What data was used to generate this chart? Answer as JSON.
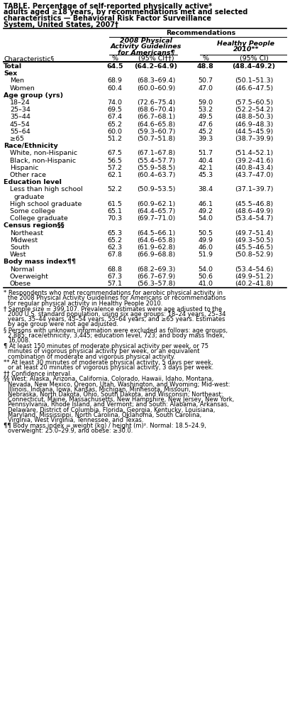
{
  "title_parts": [
    {
      "text": "TABLE. ",
      "bold": true
    },
    {
      "text": "Percentage of self-reported physically active",
      "bold": true
    },
    {
      "text": "*",
      "bold": true,
      "super": true
    },
    {
      "text": " adults aged ≥18 years, by recommendations met and selected characteristics — Behavioral Risk Factor Surveillance System, United States, 2007",
      "bold": true
    },
    {
      "text": "†",
      "bold": true,
      "super": true
    }
  ],
  "title_plain": "TABLE. Percentage of self-reported physically active* adults aged ≥18 years, by recommendations met and selected characteristics — Behavioral Risk Factor Surveillance System, United States, 2007†",
  "rec_header": "Recommendations",
  "sub_header1": "2008 Physical\nActivity Guidelines\nfor Americans¶",
  "sub_header2": "Healthy People\n2010**",
  "char_header": "Characteristic§",
  "pct_header": "%",
  "ci1_header": "(95% CI††)",
  "ci2_header": "(95% CI)",
  "rows": [
    {
      "char": "Total",
      "bold": true,
      "indent": 0,
      "pct1": "64.5",
      "ci1": "(64.2–64.9)",
      "pct2": "48.8",
      "ci2": "(48.4–49.2)",
      "section": false
    },
    {
      "char": "Sex",
      "bold": true,
      "indent": 0,
      "pct1": "",
      "ci1": "",
      "pct2": "",
      "ci2": "",
      "section": true
    },
    {
      "char": "Men",
      "bold": false,
      "indent": 1,
      "pct1": "68.9",
      "ci1": "(68.3–69.4)",
      "pct2": "50.7",
      "ci2": "(50.1–51.3)",
      "section": false
    },
    {
      "char": "Women",
      "bold": false,
      "indent": 1,
      "pct1": "60.4",
      "ci1": "(60.0–60.9)",
      "pct2": "47.0",
      "ci2": "(46.6–47.5)",
      "section": false
    },
    {
      "char": "Age group (yrs)",
      "bold": true,
      "indent": 0,
      "pct1": "",
      "ci1": "",
      "pct2": "",
      "ci2": "",
      "section": true
    },
    {
      "char": "18–24",
      "bold": false,
      "indent": 1,
      "pct1": "74.0",
      "ci1": "(72.6–75.4)",
      "pct2": "59.0",
      "ci2": "(57.5–60.5)",
      "section": false
    },
    {
      "char": "25–34",
      "bold": false,
      "indent": 1,
      "pct1": "69.5",
      "ci1": "(68.6–70.4)",
      "pct2": "53.2",
      "ci2": "(52.2–54.2)",
      "section": false
    },
    {
      "char": "35–44",
      "bold": false,
      "indent": 1,
      "pct1": "67.4",
      "ci1": "(66.7–68.1)",
      "pct2": "49.5",
      "ci2": "(48.8–50.3)",
      "section": false
    },
    {
      "char": "45–54",
      "bold": false,
      "indent": 1,
      "pct1": "65.2",
      "ci1": "(64.6–65.8)",
      "pct2": "47.6",
      "ci2": "(46.9–48.3)",
      "section": false
    },
    {
      "char": "55–64",
      "bold": false,
      "indent": 1,
      "pct1": "60.0",
      "ci1": "(59.3–60.7)",
      "pct2": "45.2",
      "ci2": "(44.5–45.9)",
      "section": false
    },
    {
      "char": "≥65",
      "bold": false,
      "indent": 1,
      "pct1": "51.2",
      "ci1": "(50.7–51.8)",
      "pct2": "39.3",
      "ci2": "(38.7–39.9)",
      "section": false,
      "ge_underline": true
    },
    {
      "char": "Race/Ethnicity",
      "bold": true,
      "indent": 0,
      "pct1": "",
      "ci1": "",
      "pct2": "",
      "ci2": "",
      "section": true
    },
    {
      "char": "White, non-Hispanic",
      "bold": false,
      "indent": 1,
      "pct1": "67.5",
      "ci1": "(67.1–67.8)",
      "pct2": "51.7",
      "ci2": "(51.4–52.1)",
      "section": false
    },
    {
      "char": "Black, non-Hispanic",
      "bold": false,
      "indent": 1,
      "pct1": "56.5",
      "ci1": "(55.4–57.7)",
      "pct2": "40.4",
      "ci2": "(39.2–41.6)",
      "section": false
    },
    {
      "char": "Hispanic",
      "bold": false,
      "indent": 1,
      "pct1": "57.2",
      "ci1": "(55.9–58.5)",
      "pct2": "42.1",
      "ci2": "(40.8–43.4)",
      "section": false
    },
    {
      "char": "Other race",
      "bold": false,
      "indent": 1,
      "pct1": "62.1",
      "ci1": "(60.4–63.7)",
      "pct2": "45.3",
      "ci2": "(43.7–47.0)",
      "section": false
    },
    {
      "char": "Education level",
      "bold": true,
      "indent": 0,
      "pct1": "",
      "ci1": "",
      "pct2": "",
      "ci2": "",
      "section": true
    },
    {
      "char": "Less than high school\n  graduate",
      "bold": false,
      "indent": 1,
      "pct1": "52.2",
      "ci1": "(50.9–53.5)",
      "pct2": "38.4",
      "ci2": "(37.1–39.7)",
      "section": false,
      "two_line": true
    },
    {
      "char": "High school graduate",
      "bold": false,
      "indent": 1,
      "pct1": "61.5",
      "ci1": "(60.9–62.1)",
      "pct2": "46.1",
      "ci2": "(45.5–46.8)",
      "section": false
    },
    {
      "char": "Some college",
      "bold": false,
      "indent": 1,
      "pct1": "65.1",
      "ci1": "(64.4–65.7)",
      "pct2": "49.2",
      "ci2": "(48.6–49.9)",
      "section": false
    },
    {
      "char": "College graduate",
      "bold": false,
      "indent": 1,
      "pct1": "70.3",
      "ci1": "(69.7–71.0)",
      "pct2": "54.0",
      "ci2": "(53.4–54.7)",
      "section": false
    },
    {
      "char": "Census region§§",
      "bold": true,
      "indent": 0,
      "pct1": "",
      "ci1": "",
      "pct2": "",
      "ci2": "",
      "section": true
    },
    {
      "char": "Northeast",
      "bold": false,
      "indent": 1,
      "pct1": "65.3",
      "ci1": "(64.5–66.1)",
      "pct2": "50.5",
      "ci2": "(49.7–51.4)",
      "section": false
    },
    {
      "char": "Midwest",
      "bold": false,
      "indent": 1,
      "pct1": "65.2",
      "ci1": "(64.6–65.8)",
      "pct2": "49.9",
      "ci2": "(49.3–50.5)",
      "section": false
    },
    {
      "char": "South",
      "bold": false,
      "indent": 1,
      "pct1": "62.3",
      "ci1": "(61.9–62.8)",
      "pct2": "46.0",
      "ci2": "(45.5–46.5)",
      "section": false
    },
    {
      "char": "West",
      "bold": false,
      "indent": 1,
      "pct1": "67.8",
      "ci1": "(66.9–68.8)",
      "pct2": "51.9",
      "ci2": "(50.8–52.9)",
      "section": false
    },
    {
      "char": "Body mass index¶¶",
      "bold": true,
      "indent": 0,
      "pct1": "",
      "ci1": "",
      "pct2": "",
      "ci2": "",
      "section": true
    },
    {
      "char": "Normal",
      "bold": false,
      "indent": 1,
      "pct1": "68.8",
      "ci1": "(68.2–69.3)",
      "pct2": "54.0",
      "ci2": "(53.4–54.6)",
      "section": false
    },
    {
      "char": "Overweight",
      "bold": false,
      "indent": 1,
      "pct1": "67.3",
      "ci1": "(66.7–67.9)",
      "pct2": "50.6",
      "ci2": "(49.9–51.2)",
      "section": false
    },
    {
      "char": "Obese",
      "bold": false,
      "indent": 1,
      "pct1": "57.1",
      "ci1": "(56.3–57.8)",
      "pct2": "41.0",
      "ci2": "(40.2–41.8)",
      "section": false
    }
  ],
  "footnotes": [
    "* Respondents who met recommendations for aerobic physical activity in the 2008 Physical Activity Guidelines for Americans or recommendations for regular physical activity in Healthy People 2010.",
    "† Sample size = 399,107. Prevalence estimates were age adjusted to the 2000 U.S. standard population, using six age groups: 18–24 years, 25–34 years, 35–44 years, 45–54 years, 55–64 years, and ≥65 years. Estimates by age group were not age adjusted.",
    "§ Persons with unknown information were excluded as follows: age groups, 2,885; race/ethnicity, 3,445; education level, 723; and body mass index, 16,008.",
    "¶ At least 150 minutes of moderate physical activity per week, or 75 minutes of vigorous physical activity per week, or an equivalent combination of moderate and vigorous physical activity.",
    "** At least 30 minutes of moderate physical activity, 5 days per week, or at least 20 minutes of vigorous physical activity, 3 days per week.",
    "†† Confidence interval.",
    "§§ West: Alaska, Arizona, California, Colorado, Hawaii, Idaho, Montana, Nevada, New Mexico, Oregon, Utah, Washington, and Wyoming; Mid-west: Illinois, Indiana, Iowa, Kansas, Michigan, Minnesota, Missouri, Nebraska, North Dakota, Ohio, South Dakota, and Wisconsin; Northeast: Connecticut, Maine, Massachusetts, New Hampshire, New Jersey, New York, Pennsylvania, Rhode Island, and Vermont; and South: Alabama, Arkansas, Delaware, District of Columbia, Florida, Georgia, Kentucky, Louisiana, Maryland, Mississippi, North Carolina, Oklahoma, South Carolina, Virginia, West Virginia, Tennessee, and Texas.",
    "¶¶ Body mass index = weight (kg) / height (m)². Normal: 18.5–24.9, overweight: 25.0–29.9, and obese: ≥30.0."
  ],
  "bg_color": "#ffffff",
  "text_color": "#000000"
}
